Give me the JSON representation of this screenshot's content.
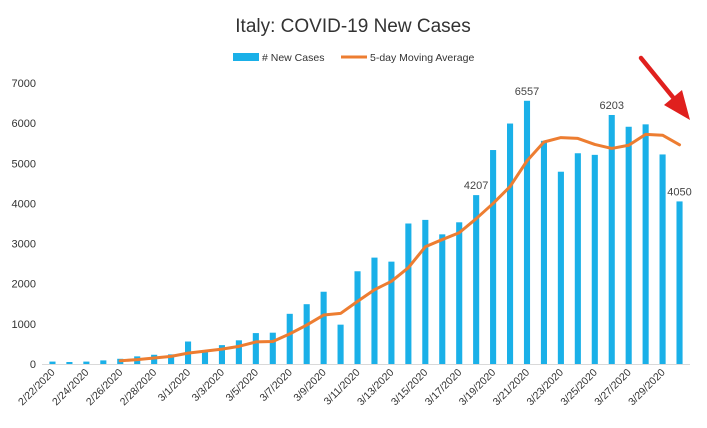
{
  "chart_data": {
    "type": "bar",
    "title": "Italy: COVID-19 New Cases",
    "xlabel": "",
    "ylabel": "",
    "ylim": [
      0,
      7000
    ],
    "y_ticks": [
      0,
      1000,
      2000,
      3000,
      4000,
      5000,
      6000,
      7000
    ],
    "legend_position": "top",
    "grid": false,
    "categories": [
      "2/22/2020",
      "2/23/2020",
      "2/24/2020",
      "2/25/2020",
      "2/26/2020",
      "2/27/2020",
      "2/28/2020",
      "2/29/2020",
      "3/1/2020",
      "3/2/2020",
      "3/3/2020",
      "3/4/2020",
      "3/5/2020",
      "3/6/2020",
      "3/7/2020",
      "3/8/2020",
      "3/9/2020",
      "3/10/2020",
      "3/11/2020",
      "3/12/2020",
      "3/13/2020",
      "3/14/2020",
      "3/15/2020",
      "3/16/2020",
      "3/17/2020",
      "3/18/2020",
      "3/19/2020",
      "3/20/2020",
      "3/21/2020",
      "3/22/2020",
      "3/23/2020",
      "3/24/2020",
      "3/25/2020",
      "3/26/2020",
      "3/27/2020",
      "3/28/2020",
      "3/29/2020",
      "3/30/2020"
    ],
    "x_tick_labels": [
      "2/22/2020",
      "",
      "2/24/2020",
      "",
      "2/26/2020",
      "",
      "2/28/2020",
      "",
      "3/1/2020",
      "",
      "3/3/2020",
      "",
      "3/5/2020",
      "",
      "3/7/2020",
      "",
      "3/9/2020",
      "",
      "3/11/2020",
      "",
      "3/13/2020",
      "",
      "3/15/2020",
      "",
      "3/17/2020",
      "",
      "3/19/2020",
      "",
      "3/21/2020",
      "",
      "3/23/2020",
      "",
      "3/25/2020",
      "",
      "3/27/2020",
      "",
      "3/29/2020",
      ""
    ],
    "series": [
      {
        "name": "# New Cases",
        "type": "bar",
        "color": "#1ab0e8",
        "values": [
          60,
          50,
          60,
          90,
          130,
          190,
          230,
          240,
          560,
          340,
          470,
          590,
          770,
          780,
          1250,
          1490,
          1800,
          980,
          2310,
          2650,
          2550,
          3500,
          3590,
          3230,
          3530,
          4207,
          5330,
          5990,
          6557,
          5560,
          4790,
          5250,
          5210,
          6203,
          5910,
          5970,
          5220,
          4050
        ]
      },
      {
        "name": "5-day Moving Average",
        "type": "line",
        "color": "#ed7d31",
        "values": [
          null,
          null,
          null,
          null,
          80,
          110,
          150,
          190,
          270,
          320,
          370,
          440,
          550,
          560,
          750,
          970,
          1220,
          1260,
          1560,
          1850,
          2060,
          2400,
          2920,
          3100,
          3270,
          3620,
          4000,
          4420,
          5060,
          5530,
          5640,
          5620,
          5470,
          5370,
          5450,
          5720,
          5700,
          5460
        ]
      }
    ],
    "data_labels": [
      {
        "index": 25,
        "text": "4207"
      },
      {
        "index": 28,
        "text": "6557"
      },
      {
        "index": 33,
        "text": "6203"
      },
      {
        "index": 37,
        "text": "4050"
      }
    ],
    "annotation": {
      "type": "arrow",
      "color": "#e0201e",
      "points_to": "end of moving average"
    }
  }
}
